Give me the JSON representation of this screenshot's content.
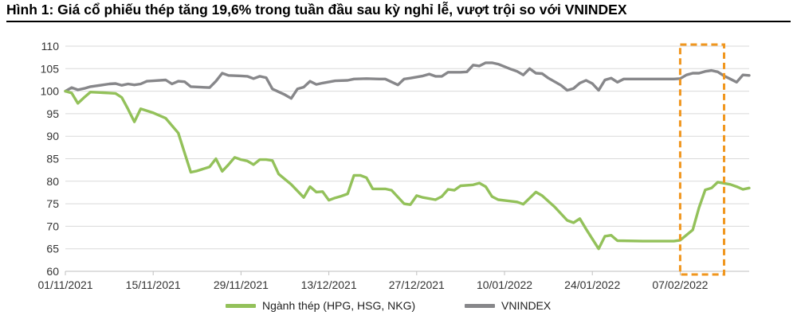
{
  "figure": {
    "title": "Hình 1: Giá cổ phiếu thép tăng 19,6% trong tuần đầu sau kỳ nghỉ lễ, vượt trội so với VNINDEX"
  },
  "chart_data": {
    "type": "line",
    "title": "Hình 1: Giá cổ phiếu thép tăng 19,6% trong tuần đầu sau kỳ nghỉ lễ, vượt trội so với VNINDEX",
    "xlabel": "",
    "ylabel": "",
    "ylim": [
      60,
      110
    ],
    "yticks": [
      60,
      65,
      70,
      75,
      80,
      85,
      90,
      95,
      100,
      105,
      110
    ],
    "xlim": [
      "2021-11-01",
      "2022-02-18"
    ],
    "xticks": [
      "01/11/2021",
      "15/11/2021",
      "29/11/2021",
      "13/12/2021",
      "27/12/2021",
      "10/01/2022",
      "24/01/2022",
      "07/02/2022"
    ],
    "grid": "horizontal",
    "legend": "bottom",
    "highlight": {
      "x_start": "2022-02-07",
      "x_end": "2022-02-14",
      "color": "#f0961e",
      "style": "dashed"
    },
    "series": [
      {
        "name": "Ngành thép (HPG, HSG, NKG)",
        "color": "#93c15a",
        "points": [
          [
            "2021-11-01",
            100.0
          ],
          [
            "2021-11-02",
            99.6
          ],
          [
            "2021-11-03",
            97.3
          ],
          [
            "2021-11-04",
            98.6
          ],
          [
            "2021-11-05",
            99.8
          ],
          [
            "2021-11-08",
            99.6
          ],
          [
            "2021-11-09",
            99.5
          ],
          [
            "2021-11-10",
            98.6
          ],
          [
            "2021-11-11",
            96.0
          ],
          [
            "2021-11-12",
            93.2
          ],
          [
            "2021-11-13",
            96.1
          ],
          [
            "2021-11-15",
            95.2
          ],
          [
            "2021-11-17",
            94.0
          ],
          [
            "2021-11-19",
            90.7
          ],
          [
            "2021-11-20",
            86.3
          ],
          [
            "2021-11-21",
            82.0
          ],
          [
            "2021-11-22",
            82.3
          ],
          [
            "2021-11-24",
            83.2
          ],
          [
            "2021-11-25",
            85.0
          ],
          [
            "2021-11-26",
            82.2
          ],
          [
            "2021-11-27",
            83.7
          ],
          [
            "2021-11-28",
            85.3
          ],
          [
            "2021-11-29",
            84.8
          ],
          [
            "2021-11-30",
            84.5
          ],
          [
            "2021-12-01",
            83.7
          ],
          [
            "2021-12-02",
            84.8
          ],
          [
            "2021-12-03",
            84.8
          ],
          [
            "2021-12-04",
            84.6
          ],
          [
            "2021-12-05",
            81.6
          ],
          [
            "2021-12-07",
            79.3
          ],
          [
            "2021-12-09",
            76.4
          ],
          [
            "2021-12-10",
            78.8
          ],
          [
            "2021-12-11",
            77.6
          ],
          [
            "2021-12-12",
            77.7
          ],
          [
            "2021-12-13",
            75.8
          ],
          [
            "2021-12-14",
            76.3
          ],
          [
            "2021-12-15",
            76.7
          ],
          [
            "2021-12-16",
            77.2
          ],
          [
            "2021-12-17",
            81.3
          ],
          [
            "2021-12-18",
            81.3
          ],
          [
            "2021-12-19",
            80.8
          ],
          [
            "2021-12-20",
            78.3
          ],
          [
            "2021-12-22",
            78.3
          ],
          [
            "2021-12-23",
            78.0
          ],
          [
            "2021-12-25",
            75.0
          ],
          [
            "2021-12-26",
            74.8
          ],
          [
            "2021-12-27",
            76.8
          ],
          [
            "2021-12-28",
            76.4
          ],
          [
            "2021-12-30",
            75.9
          ],
          [
            "2021-12-31",
            76.6
          ],
          [
            "2022-01-01",
            78.2
          ],
          [
            "2022-01-02",
            78.0
          ],
          [
            "2022-01-03",
            79.0
          ],
          [
            "2022-01-05",
            79.2
          ],
          [
            "2022-01-06",
            79.6
          ],
          [
            "2022-01-07",
            78.8
          ],
          [
            "2022-01-08",
            76.6
          ],
          [
            "2022-01-09",
            75.9
          ],
          [
            "2022-01-12",
            75.4
          ],
          [
            "2022-01-13",
            74.9
          ],
          [
            "2022-01-15",
            77.6
          ],
          [
            "2022-01-16",
            76.8
          ],
          [
            "2022-01-18",
            74.3
          ],
          [
            "2022-01-20",
            71.3
          ],
          [
            "2022-01-21",
            70.8
          ],
          [
            "2022-01-22",
            71.7
          ],
          [
            "2022-01-23",
            69.4
          ],
          [
            "2022-01-25",
            65.0
          ],
          [
            "2022-01-26",
            67.8
          ],
          [
            "2022-01-27",
            68.0
          ],
          [
            "2022-01-28",
            66.8
          ],
          [
            "2022-02-01",
            66.7
          ],
          [
            "2022-02-06",
            66.7
          ],
          [
            "2022-02-07",
            66.9
          ],
          [
            "2022-02-09",
            69.2
          ],
          [
            "2022-02-10",
            74.1
          ],
          [
            "2022-02-11",
            78.1
          ],
          [
            "2022-02-12",
            78.5
          ],
          [
            "2022-02-13",
            79.8
          ],
          [
            "2022-02-15",
            79.3
          ],
          [
            "2022-02-16",
            78.8
          ],
          [
            "2022-02-17",
            78.2
          ],
          [
            "2022-02-18",
            78.5
          ]
        ]
      },
      {
        "name": "VNINDEX",
        "color": "#87878a",
        "points": [
          [
            "2021-11-01",
            100.0
          ],
          [
            "2021-11-02",
            100.8
          ],
          [
            "2021-11-03",
            100.3
          ],
          [
            "2021-11-04",
            100.6
          ],
          [
            "2021-11-05",
            101.0
          ],
          [
            "2021-11-07",
            101.4
          ],
          [
            "2021-11-08",
            101.6
          ],
          [
            "2021-11-09",
            101.7
          ],
          [
            "2021-11-10",
            101.3
          ],
          [
            "2021-11-11",
            101.6
          ],
          [
            "2021-11-12",
            101.4
          ],
          [
            "2021-11-13",
            101.6
          ],
          [
            "2021-11-14",
            102.2
          ],
          [
            "2021-11-15",
            102.3
          ],
          [
            "2021-11-17",
            102.5
          ],
          [
            "2021-11-18",
            101.6
          ],
          [
            "2021-11-19",
            102.2
          ],
          [
            "2021-11-20",
            102.1
          ],
          [
            "2021-11-21",
            101.0
          ],
          [
            "2021-11-24",
            100.8
          ],
          [
            "2021-11-25",
            102.2
          ],
          [
            "2021-11-26",
            104.0
          ],
          [
            "2021-11-27",
            103.5
          ],
          [
            "2021-11-29",
            103.4
          ],
          [
            "2021-11-30",
            103.3
          ],
          [
            "2021-12-01",
            102.8
          ],
          [
            "2021-12-02",
            103.3
          ],
          [
            "2021-12-03",
            103.0
          ],
          [
            "2021-12-04",
            100.5
          ],
          [
            "2021-12-06",
            99.2
          ],
          [
            "2021-12-07",
            98.4
          ],
          [
            "2021-12-08",
            100.5
          ],
          [
            "2021-12-09",
            100.9
          ],
          [
            "2021-12-10",
            102.2
          ],
          [
            "2021-12-11",
            101.5
          ],
          [
            "2021-12-12",
            101.8
          ],
          [
            "2021-12-14",
            102.3
          ],
          [
            "2021-12-16",
            102.4
          ],
          [
            "2021-12-17",
            102.7
          ],
          [
            "2021-12-19",
            102.8
          ],
          [
            "2021-12-21",
            102.7
          ],
          [
            "2021-12-22",
            102.7
          ],
          [
            "2021-12-24",
            101.4
          ],
          [
            "2021-12-25",
            102.7
          ],
          [
            "2021-12-26",
            102.9
          ],
          [
            "2021-12-28",
            103.4
          ],
          [
            "2021-12-29",
            103.8
          ],
          [
            "2021-12-30",
            103.3
          ],
          [
            "2021-12-31",
            103.3
          ],
          [
            "2022-01-01",
            104.2
          ],
          [
            "2022-01-03",
            104.2
          ],
          [
            "2022-01-04",
            104.3
          ],
          [
            "2022-01-05",
            105.8
          ],
          [
            "2022-01-06",
            105.6
          ],
          [
            "2022-01-07",
            106.3
          ],
          [
            "2022-01-08",
            106.3
          ],
          [
            "2022-01-09",
            106.0
          ],
          [
            "2022-01-11",
            104.9
          ],
          [
            "2022-01-12",
            104.4
          ],
          [
            "2022-01-13",
            103.6
          ],
          [
            "2022-01-14",
            105.0
          ],
          [
            "2022-01-15",
            104.0
          ],
          [
            "2022-01-16",
            103.9
          ],
          [
            "2022-01-17",
            102.9
          ],
          [
            "2022-01-19",
            101.3
          ],
          [
            "2022-01-20",
            100.2
          ],
          [
            "2022-01-21",
            100.6
          ],
          [
            "2022-01-22",
            101.8
          ],
          [
            "2022-01-23",
            102.4
          ],
          [
            "2022-01-24",
            101.7
          ],
          [
            "2022-01-25",
            100.2
          ],
          [
            "2022-01-26",
            102.5
          ],
          [
            "2022-01-27",
            102.9
          ],
          [
            "2022-01-28",
            102.0
          ],
          [
            "2022-01-29",
            102.7
          ],
          [
            "2022-02-01",
            102.7
          ],
          [
            "2022-02-03",
            102.7
          ],
          [
            "2022-02-06",
            102.7
          ],
          [
            "2022-02-07",
            102.8
          ],
          [
            "2022-02-08",
            103.6
          ],
          [
            "2022-02-09",
            104.0
          ],
          [
            "2022-02-10",
            104.0
          ],
          [
            "2022-02-11",
            104.4
          ],
          [
            "2022-02-12",
            104.6
          ],
          [
            "2022-02-13",
            104.3
          ],
          [
            "2022-02-14",
            103.4
          ],
          [
            "2022-02-15",
            102.7
          ],
          [
            "2022-02-16",
            102.0
          ],
          [
            "2022-02-17",
            103.6
          ],
          [
            "2022-02-18",
            103.5
          ]
        ]
      }
    ]
  }
}
